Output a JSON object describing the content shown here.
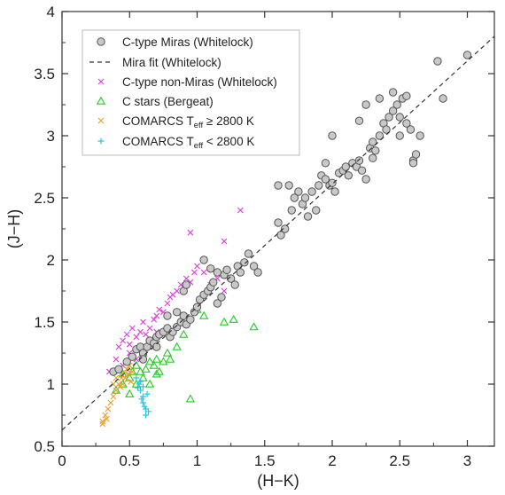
{
  "chart_data": {
    "type": "scatter",
    "xlabel": "(H−K)",
    "ylabel": "(J−H)",
    "xlim": [
      0,
      3.2
    ],
    "ylim": [
      0.5,
      4
    ],
    "xticks": [
      "0",
      "0.5",
      "1",
      "1.5",
      "2",
      "2.5",
      "3"
    ],
    "yticks": [
      "0.5",
      "1",
      "1.5",
      "2",
      "2.5",
      "3",
      "3.5",
      "4"
    ],
    "legend_position": "top-left",
    "series": [
      {
        "name": "C-type Miras   (Whitelock)",
        "marker": "circle",
        "color": "#555555",
        "fill": "#c8c8c8",
        "points": [
          [
            0.38,
            1.1
          ],
          [
            0.42,
            1.12
          ],
          [
            0.48,
            1.18
          ],
          [
            0.52,
            1.22
          ],
          [
            0.55,
            1.28
          ],
          [
            0.58,
            1.3
          ],
          [
            0.6,
            1.25
          ],
          [
            0.63,
            1.3
          ],
          [
            0.65,
            1.35
          ],
          [
            0.68,
            1.33
          ],
          [
            0.7,
            1.38
          ],
          [
            0.72,
            1.4
          ],
          [
            0.75,
            1.42
          ],
          [
            0.78,
            1.45
          ],
          [
            0.8,
            1.38
          ],
          [
            0.82,
            1.42
          ],
          [
            0.85,
            1.46
          ],
          [
            0.88,
            1.5
          ],
          [
            0.9,
            1.55
          ],
          [
            0.92,
            1.48
          ],
          [
            0.95,
            1.52
          ],
          [
            0.98,
            1.58
          ],
          [
            1.0,
            1.62
          ],
          [
            1.02,
            1.68
          ],
          [
            1.05,
            1.72
          ],
          [
            1.08,
            1.75
          ],
          [
            1.1,
            1.78
          ],
          [
            1.12,
            1.82
          ],
          [
            1.15,
            1.65
          ],
          [
            1.18,
            1.7
          ],
          [
            1.2,
            1.88
          ],
          [
            1.22,
            1.92
          ],
          [
            1.25,
            1.85
          ],
          [
            1.28,
            1.8
          ],
          [
            1.3,
            1.95
          ],
          [
            1.32,
            1.9
          ],
          [
            1.35,
            1.98
          ],
          [
            1.38,
            2.05
          ],
          [
            1.42,
            1.95
          ],
          [
            1.45,
            1.9
          ],
          [
            1.05,
            2.0
          ],
          [
            1.1,
            1.93
          ],
          [
            1.15,
            1.9
          ],
          [
            0.9,
            1.75
          ],
          [
            0.92,
            1.8
          ],
          [
            0.85,
            1.58
          ],
          [
            0.78,
            1.55
          ],
          [
            0.6,
            1.2
          ],
          [
            0.7,
            1.3
          ],
          [
            1.6,
            2.3
          ],
          [
            1.62,
            2.2
          ],
          [
            1.65,
            2.25
          ],
          [
            1.68,
            2.6
          ],
          [
            1.7,
            2.4
          ],
          [
            1.72,
            2.5
          ],
          [
            1.75,
            2.55
          ],
          [
            1.78,
            2.45
          ],
          [
            1.8,
            2.5
          ],
          [
            1.82,
            2.35
          ],
          [
            1.85,
            2.55
          ],
          [
            1.88,
            2.4
          ],
          [
            1.9,
            2.6
          ],
          [
            1.92,
            2.68
          ],
          [
            1.95,
            2.78
          ],
          [
            1.98,
            2.6
          ],
          [
            2.0,
            2.62
          ],
          [
            2.02,
            2.55
          ],
          [
            2.05,
            2.7
          ],
          [
            2.08,
            2.72
          ],
          [
            2.1,
            2.75
          ],
          [
            2.12,
            2.68
          ],
          [
            2.15,
            2.78
          ],
          [
            2.18,
            2.75
          ],
          [
            2.2,
            2.8
          ],
          [
            2.22,
            2.72
          ],
          [
            2.25,
            2.65
          ],
          [
            2.28,
            2.9
          ],
          [
            2.3,
            2.95
          ],
          [
            2.32,
            2.88
          ],
          [
            2.35,
            3.0
          ],
          [
            2.38,
            3.1
          ],
          [
            2.4,
            3.05
          ],
          [
            2.42,
            3.15
          ],
          [
            2.45,
            3.2
          ],
          [
            2.48,
            3.25
          ],
          [
            2.5,
            3.15
          ],
          [
            2.52,
            3.3
          ],
          [
            2.55,
            3.1
          ],
          [
            2.58,
            3.05
          ],
          [
            2.6,
            2.8
          ],
          [
            2.62,
            2.85
          ],
          [
            2.65,
            3.0
          ],
          [
            2.25,
            3.25
          ],
          [
            2.35,
            3.3
          ],
          [
            2.45,
            3.35
          ],
          [
            2.55,
            3.32
          ],
          [
            2.2,
            3.12
          ],
          [
            2.3,
            2.82
          ],
          [
            2.5,
            3.0
          ],
          [
            2.78,
            3.6
          ],
          [
            2.82,
            3.3
          ],
          [
            3.0,
            3.65
          ],
          [
            2.0,
            3.0
          ],
          [
            1.95,
            2.65
          ],
          [
            1.6,
            2.6
          ],
          [
            2.6,
            2.78
          ]
        ]
      },
      {
        "name": "Mira fit   (Whitelock)",
        "marker": "dashed-line",
        "color": "#333333",
        "points": [
          [
            0,
            0.63
          ],
          [
            3.2,
            3.8
          ]
        ]
      },
      {
        "name": "C-type non-Miras   (Whitelock)",
        "marker": "x",
        "color": "#e040e0",
        "points": [
          [
            0.35,
            1.1
          ],
          [
            0.4,
            1.2
          ],
          [
            0.42,
            1.3
          ],
          [
            0.45,
            1.35
          ],
          [
            0.48,
            1.4
          ],
          [
            0.5,
            1.25
          ],
          [
            0.52,
            1.45
          ],
          [
            0.55,
            1.38
          ],
          [
            0.58,
            1.42
          ],
          [
            0.6,
            1.5
          ],
          [
            0.62,
            1.4
          ],
          [
            0.65,
            1.45
          ],
          [
            0.68,
            1.52
          ],
          [
            0.7,
            1.55
          ],
          [
            0.72,
            1.6
          ],
          [
            0.75,
            1.58
          ],
          [
            0.78,
            1.65
          ],
          [
            0.8,
            1.7
          ],
          [
            0.82,
            1.72
          ],
          [
            0.85,
            1.75
          ],
          [
            0.88,
            1.8
          ],
          [
            0.9,
            1.78
          ],
          [
            0.92,
            1.85
          ],
          [
            0.95,
            1.82
          ],
          [
            0.98,
            1.9
          ],
          [
            1.0,
            1.95
          ],
          [
            1.05,
            1.9
          ],
          [
            1.1,
            1.8
          ],
          [
            1.15,
            1.85
          ],
          [
            1.2,
            1.75
          ],
          [
            0.95,
            2.22
          ],
          [
            1.2,
            2.15
          ],
          [
            1.32,
            2.4
          ],
          [
            0.45,
            1.15
          ],
          [
            0.5,
            1.32
          ],
          [
            0.55,
            1.2
          ],
          [
            0.65,
            1.3
          ],
          [
            0.7,
            1.42
          ]
        ]
      },
      {
        "name": "C stars   (Bergeat)",
        "marker": "triangle",
        "color": "#22cc22",
        "points": [
          [
            0.4,
            0.95
          ],
          [
            0.45,
            1.0
          ],
          [
            0.5,
            1.05
          ],
          [
            0.52,
            1.1
          ],
          [
            0.55,
            1.15
          ],
          [
            0.58,
            1.1
          ],
          [
            0.6,
            1.05
          ],
          [
            0.62,
            1.12
          ],
          [
            0.65,
            1.18
          ],
          [
            0.68,
            1.15
          ],
          [
            0.7,
            1.2
          ],
          [
            0.72,
            1.1
          ],
          [
            0.75,
            1.18
          ],
          [
            0.78,
            1.25
          ],
          [
            0.8,
            1.2
          ],
          [
            0.85,
            1.3
          ],
          [
            0.6,
            1.25
          ],
          [
            0.55,
            1.0
          ],
          [
            0.5,
            0.92
          ],
          [
            0.45,
            1.08
          ],
          [
            0.65,
            1.0
          ],
          [
            0.7,
            1.08
          ],
          [
            0.95,
            0.88
          ],
          [
            1.05,
            1.55
          ],
          [
            1.2,
            1.5
          ],
          [
            1.27,
            1.52
          ],
          [
            1.42,
            1.46
          ],
          [
            0.9,
            1.4
          ],
          [
            1.0,
            1.6
          ]
        ]
      },
      {
        "name": "COMARCS   Teff ≥ 2800 K",
        "marker": "x",
        "color": "#e8a030",
        "points": [
          [
            0.3,
            0.7
          ],
          [
            0.32,
            0.75
          ],
          [
            0.34,
            0.8
          ],
          [
            0.36,
            0.85
          ],
          [
            0.38,
            0.9
          ],
          [
            0.4,
            0.95
          ],
          [
            0.42,
            1.0
          ],
          [
            0.44,
            1.05
          ],
          [
            0.46,
            1.1
          ],
          [
            0.48,
            1.12
          ],
          [
            0.5,
            1.15
          ],
          [
            0.52,
            1.1
          ],
          [
            0.45,
            1.0
          ],
          [
            0.47,
            1.05
          ],
          [
            0.43,
            0.98
          ],
          [
            0.49,
            1.08
          ],
          [
            0.51,
            1.02
          ],
          [
            0.4,
            1.05
          ],
          [
            0.42,
            1.1
          ],
          [
            0.38,
            1.0
          ],
          [
            0.3,
            0.68
          ],
          [
            0.33,
            0.72
          ]
        ]
      },
      {
        "name": "COMARCS   Teff < 2800 K",
        "marker": "plus",
        "color": "#20c8e8",
        "points": [
          [
            0.55,
            1.05
          ],
          [
            0.57,
            1.0
          ],
          [
            0.58,
            0.95
          ],
          [
            0.6,
            0.9
          ],
          [
            0.6,
            0.85
          ],
          [
            0.62,
            0.8
          ],
          [
            0.62,
            0.75
          ],
          [
            0.58,
            1.02
          ],
          [
            0.6,
            0.98
          ],
          [
            0.63,
            0.92
          ],
          [
            0.61,
            0.82
          ],
          [
            0.64,
            0.78
          ],
          [
            0.59,
            0.88
          ],
          [
            0.56,
            0.97
          ]
        ]
      }
    ]
  }
}
